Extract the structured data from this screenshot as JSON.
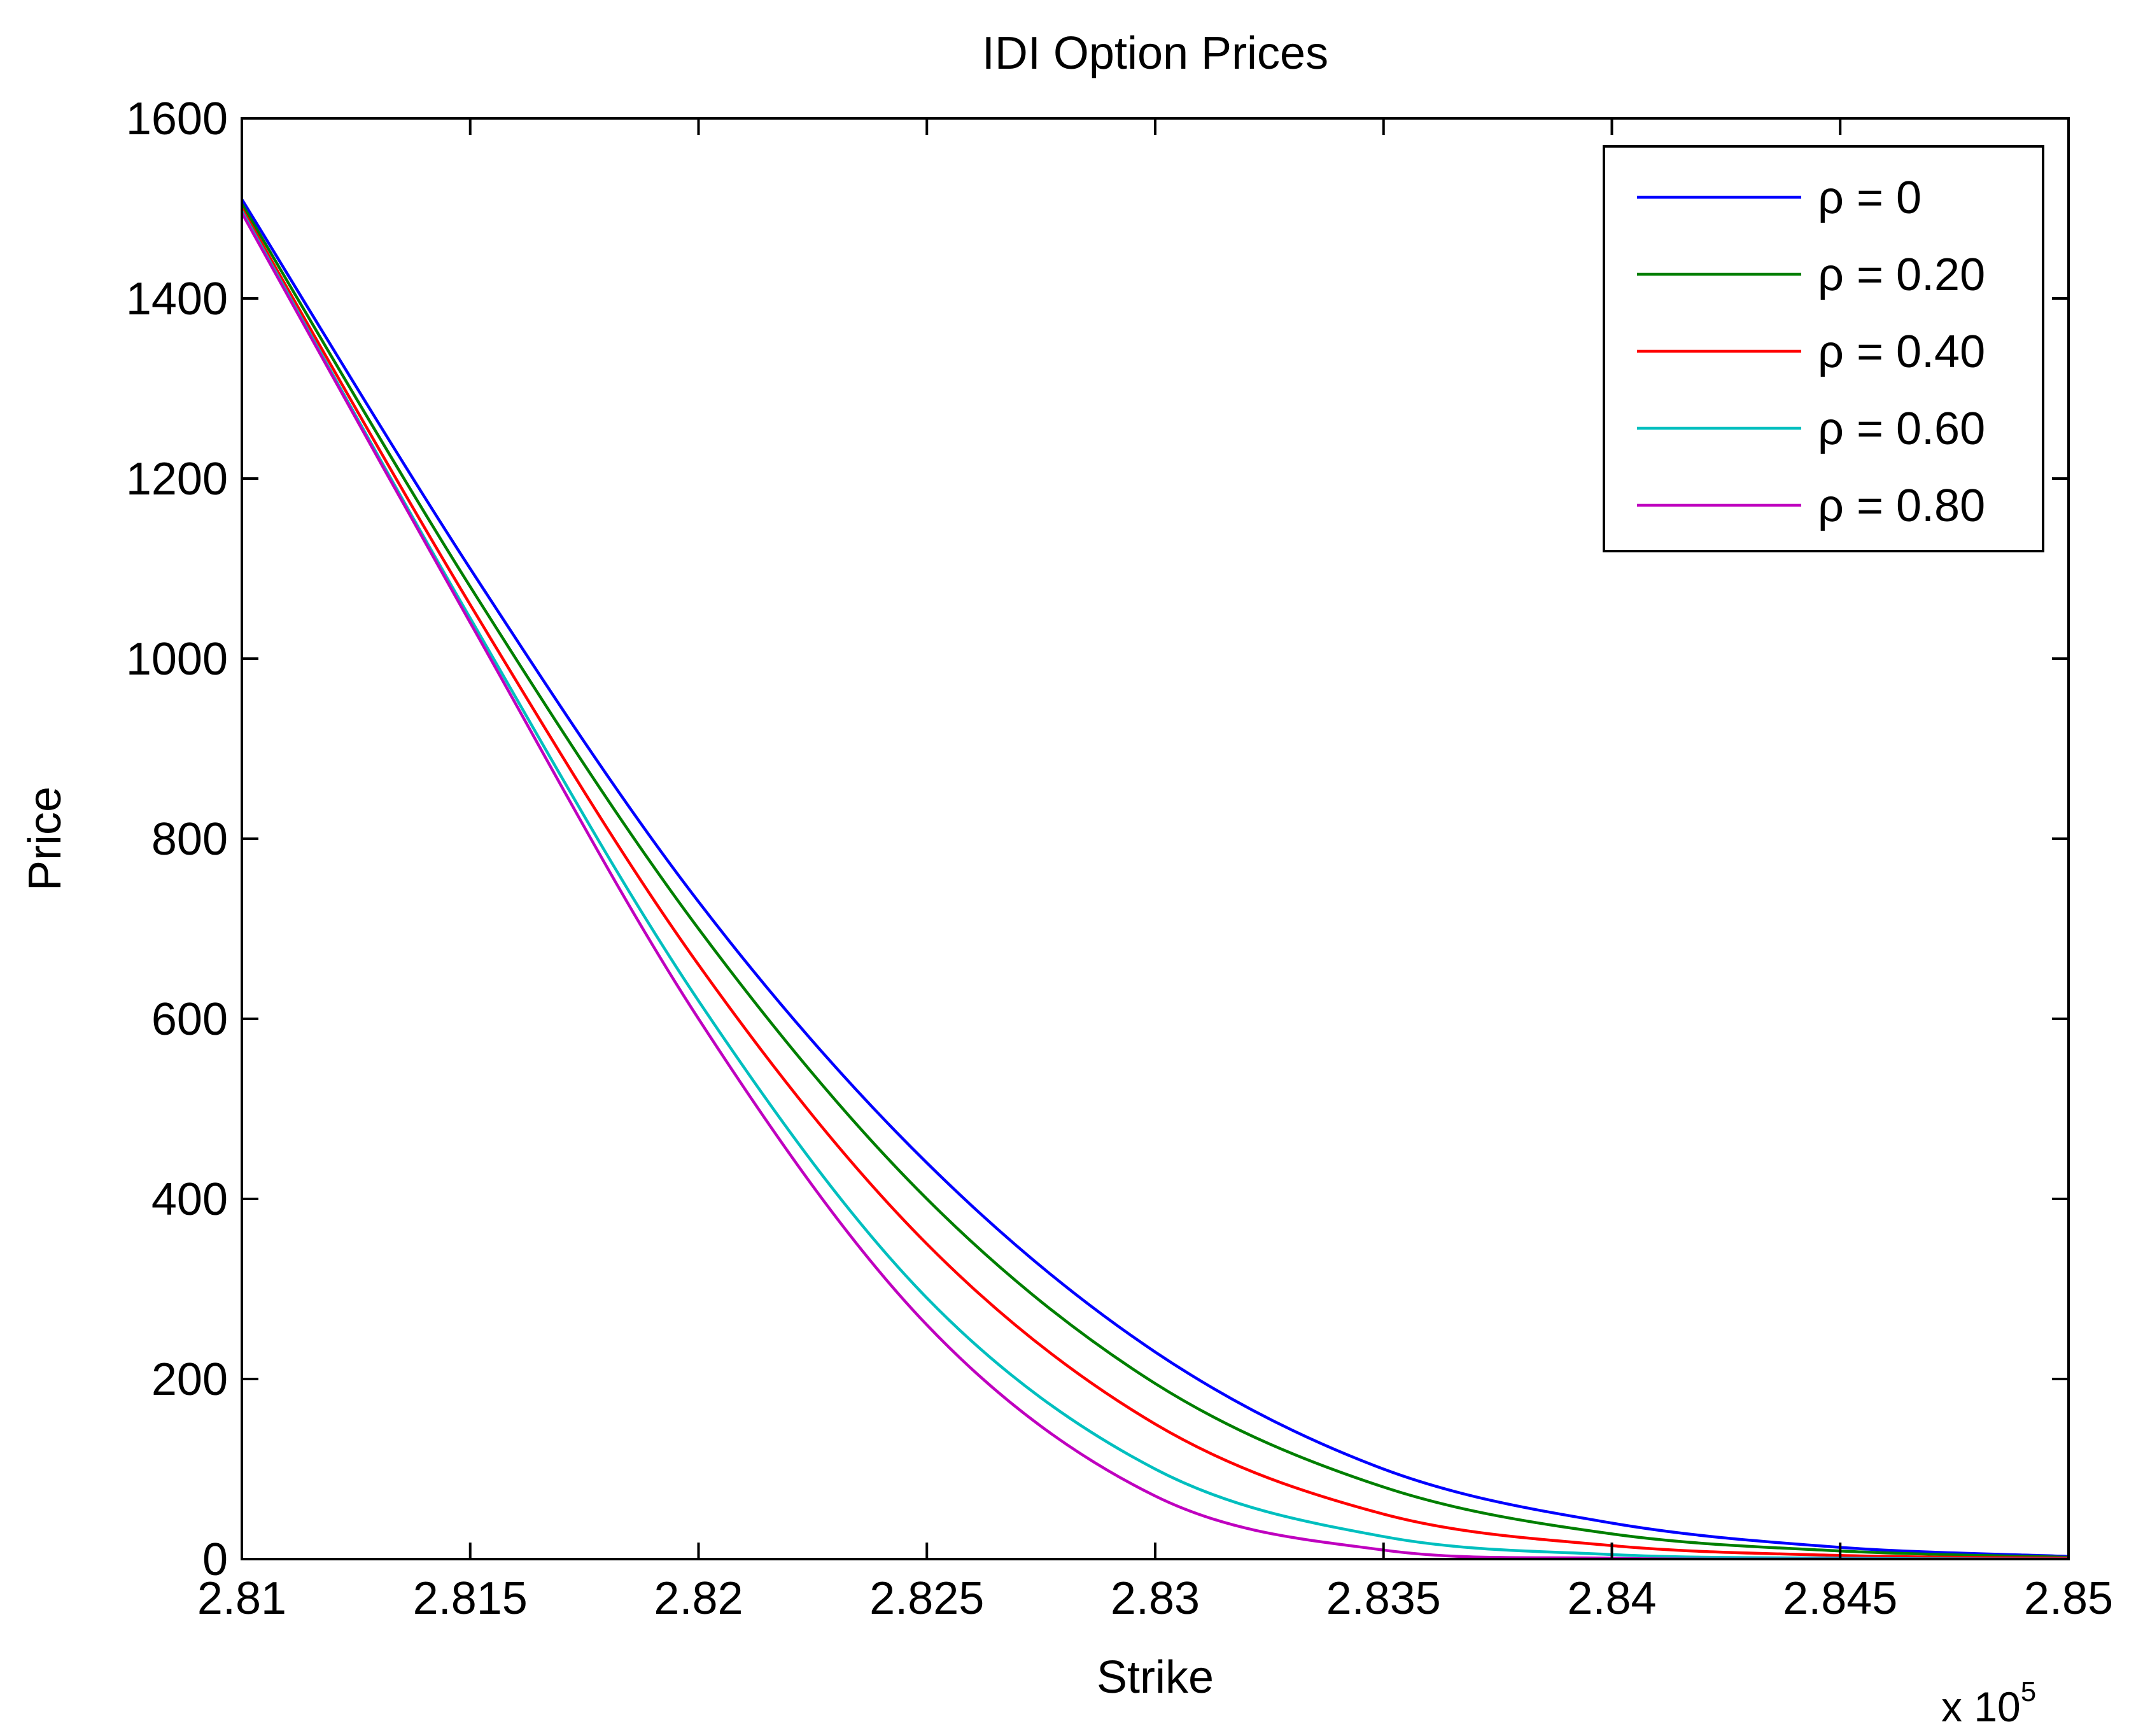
{
  "chart_data": {
    "type": "line",
    "title": "IDI Option Prices",
    "xlabel": "Strike",
    "ylabel": "Price",
    "x_multiplier_base": "x 10",
    "x_multiplier_exp": "5",
    "xlim": [
      2.81,
      2.85
    ],
    "ylim": [
      0,
      1600
    ],
    "x_ticks": [
      2.81,
      2.815,
      2.82,
      2.825,
      2.83,
      2.835,
      2.84,
      2.845,
      2.85
    ],
    "x_tick_labels": [
      "2.81",
      "2.815",
      "2.82",
      "2.825",
      "2.83",
      "2.835",
      "2.84",
      "2.845",
      "2.85"
    ],
    "y_ticks": [
      0,
      200,
      400,
      600,
      800,
      1000,
      1200,
      1400,
      1600
    ],
    "y_tick_labels": [
      "0",
      "200",
      "400",
      "600",
      "800",
      "1000",
      "1200",
      "1400",
      "1600"
    ],
    "grid": false,
    "legend_position": "top-right",
    "x": [
      2.81,
      2.815,
      2.82,
      2.825,
      2.83,
      2.835,
      2.84,
      2.845,
      2.85
    ],
    "series": [
      {
        "name": "ρ = 0",
        "color": "#0000ff",
        "values": [
          1510,
          1100,
          730,
          440,
          230,
          100,
          40,
          13,
          3
        ]
      },
      {
        "name": "ρ = 0.20",
        "color": "#007f00",
        "values": [
          1505,
          1080,
          700,
          400,
          195,
          80,
          28,
          9,
          2
        ]
      },
      {
        "name": "ρ = 0.40",
        "color": "#ff0000",
        "values": [
          1500,
          1060,
          660,
          350,
          150,
          50,
          15,
          4,
          1
        ]
      },
      {
        "name": "ρ = 0.60",
        "color": "#00bfbf",
        "values": [
          1497,
          1045,
          620,
          290,
          100,
          25,
          5,
          1,
          0
        ]
      },
      {
        "name": "ρ = 0.80",
        "color": "#bf00bf",
        "values": [
          1495,
          1040,
          600,
          260,
          70,
          10,
          1,
          0,
          0
        ]
      }
    ]
  }
}
